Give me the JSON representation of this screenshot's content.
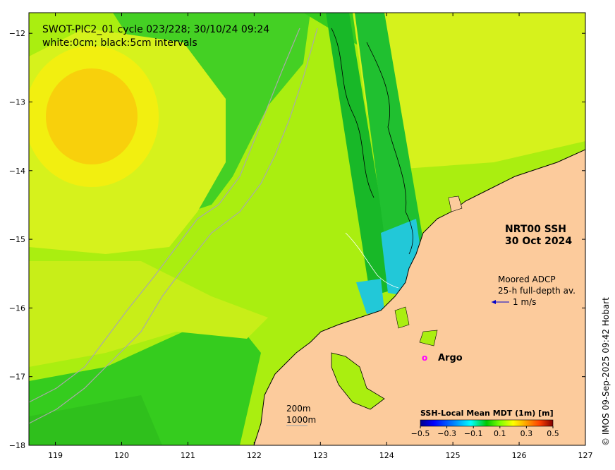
{
  "title_line1": "SWOT-PIC2_01 cycle 023/228; 30/10/24 09:24",
  "title_line2": "white:0cm; black:5cm intervals",
  "product_line1": "NRT00 SSH",
  "product_line2": "30 Oct 2024",
  "adcp_line1": "Moored ADCP",
  "adcp_line2": "25-h full-depth av.",
  "adcp_scale": "1 m/s",
  "argo_marker": "o",
  "argo_label": "Argo",
  "depth_label_1": "200m",
  "depth_label_2": "1000m",
  "colorbar": {
    "title": "SSH-Local Mean MDT (1m) [m]",
    "ticks": [
      "-0.5",
      "-0.3",
      "-0.1",
      "0.1",
      "0.3",
      "0.5"
    ],
    "range": [
      -0.5,
      0.5
    ],
    "colors": [
      "#00008b",
      "#0000ff",
      "#0080ff",
      "#00ffff",
      "#00c800",
      "#80ff00",
      "#ffff00",
      "#ffa000",
      "#ff4000",
      "#c00000",
      "#800000"
    ]
  },
  "credit": "© IMOS 09-Sep-2025 09:42 Hobart",
  "axes": {
    "x_ticks": [
      119,
      120,
      121,
      122,
      123,
      124,
      125,
      126,
      127
    ],
    "y_ticks": [
      -12,
      -13,
      -14,
      -15,
      -16,
      -17,
      -18
    ],
    "x_range": [
      118.6,
      127.0
    ],
    "y_range": [
      -18.0,
      -11.7
    ]
  },
  "colors": {
    "land": "#fccb9c",
    "sea_base": "#aaee10",
    "sea_green": "#35cc1e",
    "sea_yellow_green": "#d6f21c",
    "sea_yellow": "#f2ef10",
    "sea_orange_yellow": "#f8d00c",
    "swath_green": "#18b828",
    "swath_cyan": "#22c8d8",
    "argo": "#ff00ff",
    "arrow": "#0000cc"
  }
}
